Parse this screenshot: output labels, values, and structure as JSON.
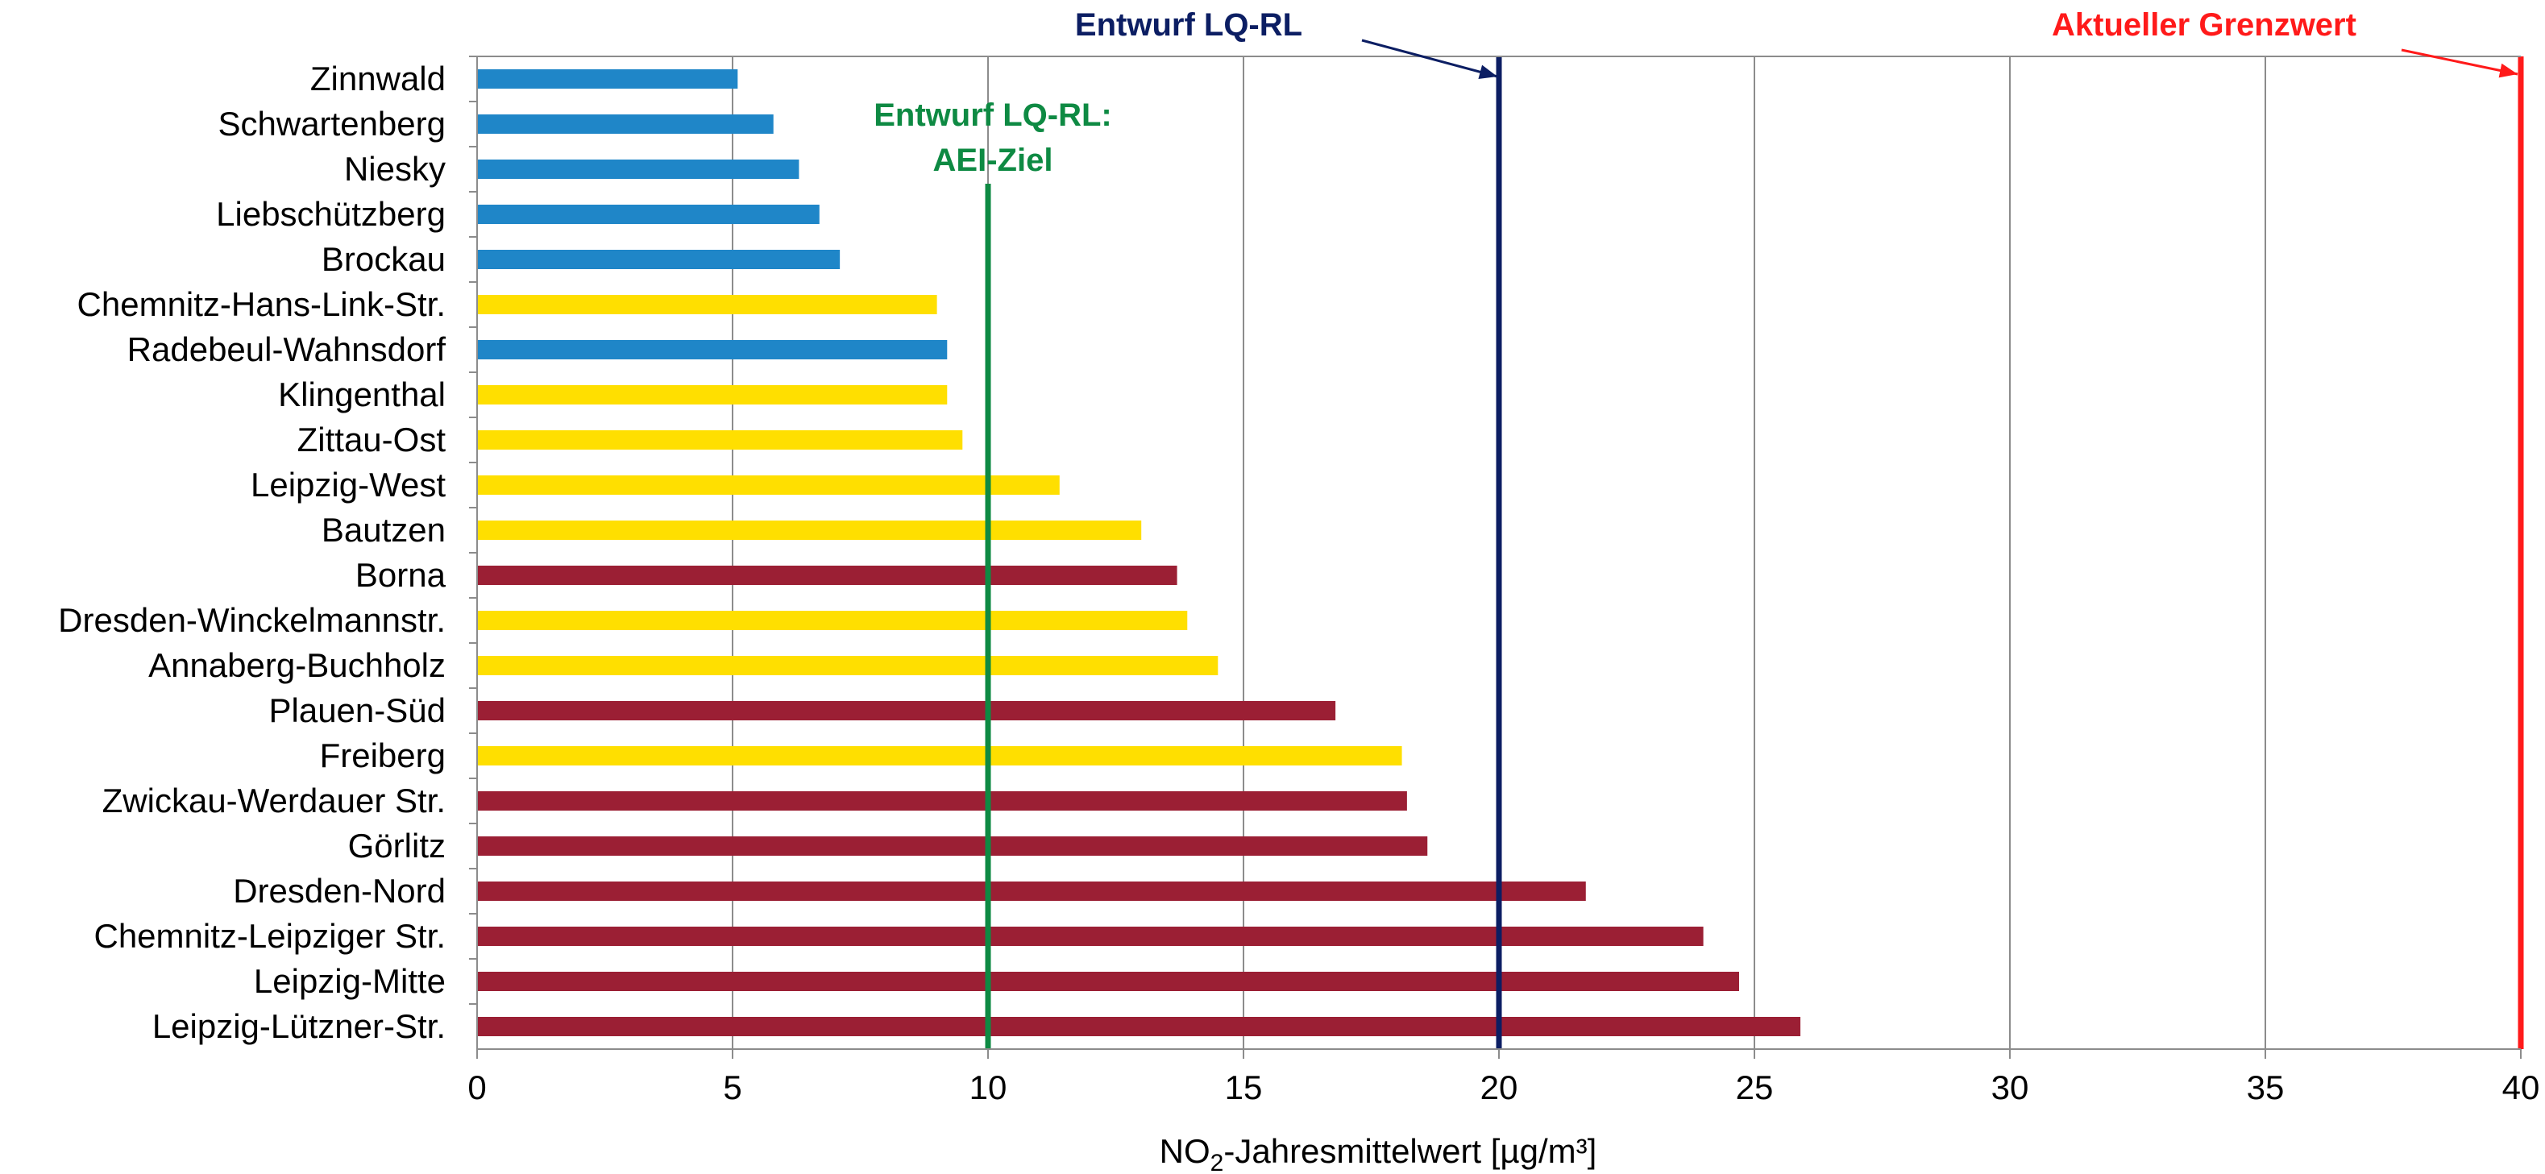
{
  "chart_data": {
    "type": "bar",
    "orientation": "horizontal",
    "categories": [
      "Zinnwald",
      "Schwartenberg",
      "Niesky",
      "Liebschützberg",
      "Brockau",
      "Chemnitz-Hans-Link-Str.",
      "Radebeul-Wahnsdorf",
      "Klingenthal",
      "Zittau-Ost",
      "Leipzig-West",
      "Bautzen",
      "Borna",
      "Dresden-Winckelmannstr.",
      "Annaberg-Buchholz",
      "Plauen-Süd",
      "Freiberg",
      "Zwickau-Werdauer Str.",
      "Görlitz",
      "Dresden-Nord",
      "Chemnitz-Leipziger Str.",
      "Leipzig-Mitte",
      "Leipzig-Lützner-Str."
    ],
    "values": [
      5.1,
      5.8,
      6.3,
      6.7,
      7.1,
      9.0,
      9.2,
      9.2,
      9.5,
      11.4,
      13.0,
      13.7,
      13.9,
      14.5,
      16.8,
      18.1,
      18.2,
      18.6,
      21.7,
      24.0,
      24.7,
      25.9
    ],
    "bar_colors": [
      "#1f86c8",
      "#1f86c8",
      "#1f86c8",
      "#1f86c8",
      "#1f86c8",
      "#ffdf00",
      "#1f86c8",
      "#ffdf00",
      "#ffdf00",
      "#ffdf00",
      "#ffdf00",
      "#9b1f34",
      "#ffdf00",
      "#ffdf00",
      "#9b1f34",
      "#ffdf00",
      "#9b1f34",
      "#9b1f34",
      "#9b1f34",
      "#9b1f34",
      "#9b1f34",
      "#9b1f34"
    ],
    "xlim": [
      0,
      40
    ],
    "xticks": [
      "0",
      "5",
      "10",
      "15",
      "20",
      "25",
      "30",
      "35",
      "40"
    ],
    "xlabel_main": "NO",
    "xlabel_sub": "2",
    "xlabel_rest": "-Jahresmittelwert [µg/m³]",
    "grid": "vertical",
    "reference_lines": [
      {
        "label_lines": [
          "Entwurf LQ-RL:",
          "AEI-Ziel"
        ],
        "value": 10,
        "color": "#0e8a43"
      },
      {
        "label_lines": [
          "Entwurf LQ-RL"
        ],
        "value": 20,
        "color": "#0c1e63"
      },
      {
        "label_lines": [
          "Aktueller Grenzwert"
        ],
        "value": 40,
        "color": "#ff1a1a"
      }
    ]
  }
}
